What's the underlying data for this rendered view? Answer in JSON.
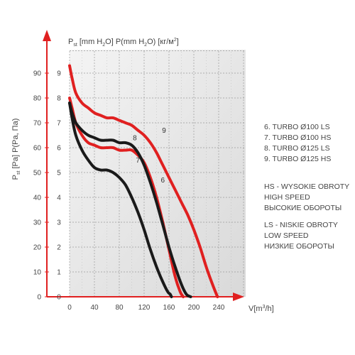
{
  "chart_data": {
    "type": "line",
    "yaxis": {
      "label_part1": "P",
      "label_sub1": "st",
      "label_part2": " [Pa] P(Pa, Па)",
      "ticks": [
        "0",
        "10",
        "20",
        "30",
        "40",
        "50",
        "60",
        "70",
        "80",
        "90"
      ],
      "range": [
        0,
        90
      ]
    },
    "y2axis": {
      "label": "P",
      "label_sub": "st",
      "label_mid": " [mm H",
      "label_sub2": "2",
      "label_mid2": "O] P(mm H",
      "label_sub3": "2",
      "label_mid3": "O) [кг/м",
      "label_sup": "2",
      "label_end": "]",
      "ticks": [
        "0",
        "1",
        "2",
        "3",
        "4",
        "5",
        "6",
        "7",
        "8",
        "9"
      ]
    },
    "xaxis": {
      "label": "V[m",
      "label_sup": "3",
      "label_end": "/h]",
      "ticks": [
        "0",
        "40",
        "80",
        "120",
        "160",
        "200",
        "240"
      ],
      "range": [
        0,
        250
      ]
    },
    "series": [
      {
        "name": "6",
        "color": "#1a1a1a",
        "x": [
          0,
          4,
          10,
          20,
          30,
          40,
          50,
          60,
          70,
          80,
          90,
          100,
          110,
          120,
          130,
          140,
          150,
          158,
          162,
          164
        ],
        "y": [
          78,
          72,
          65,
          59,
          55,
          52,
          51,
          51,
          50,
          48,
          45,
          40,
          34,
          27,
          19,
          12,
          6,
          2,
          1,
          0
        ]
      },
      {
        "name": "7",
        "color": "#e02020",
        "x": [
          0,
          4,
          10,
          20,
          30,
          40,
          50,
          60,
          70,
          80,
          90,
          100,
          110,
          120,
          130,
          140,
          150,
          160,
          170,
          178,
          183
        ],
        "y": [
          80,
          76,
          70,
          65,
          62,
          61,
          60,
          60,
          60,
          59,
          59,
          59,
          57,
          54,
          48,
          40,
          30,
          19,
          8,
          2,
          0
        ]
      },
      {
        "name": "8",
        "color": "#1a1a1a",
        "x": [
          0,
          4,
          10,
          20,
          30,
          40,
          50,
          60,
          70,
          80,
          90,
          100,
          110,
          120,
          130,
          140,
          150,
          160,
          170,
          180,
          188,
          195
        ],
        "y": [
          78,
          74,
          70,
          67,
          65,
          64,
          63,
          63,
          63,
          62,
          62,
          61,
          58,
          53,
          46,
          38,
          29,
          20,
          12,
          5,
          1,
          0
        ]
      },
      {
        "name": "9",
        "color": "#e02020",
        "x": [
          0,
          4,
          10,
          20,
          30,
          40,
          50,
          60,
          70,
          80,
          90,
          100,
          110,
          120,
          130,
          140,
          150,
          160,
          170,
          180,
          190,
          200,
          210,
          220,
          230,
          238
        ],
        "y": [
          93,
          88,
          82,
          78,
          76,
          74,
          73,
          72,
          72,
          71,
          70,
          69,
          67,
          65,
          62,
          58,
          53,
          48,
          43,
          38,
          33,
          27,
          20,
          12,
          5,
          0
        ]
      }
    ],
    "grid": true,
    "legend_position": "right"
  },
  "legend": {
    "models": [
      "6. TURBO Ø100 LS",
      "7. TURBO Ø100 HS",
      "8. TURBO Ø125 LS",
      "9. TURBO Ø125 HS"
    ],
    "hs": [
      "HS - WYSOKIE OBROTY",
      "HIGH SPEED",
      "ВЫСОКИЕ ОБОРОТЫ"
    ],
    "ls": [
      "LS - NISKIE OBROTY",
      "LOW SPEED",
      "НИЗКИЕ ОБОРОТЫ"
    ]
  },
  "colors": {
    "black_curve": "#1a1a1a",
    "red_curve": "#e02020",
    "axis_arrow": "#e02020"
  }
}
